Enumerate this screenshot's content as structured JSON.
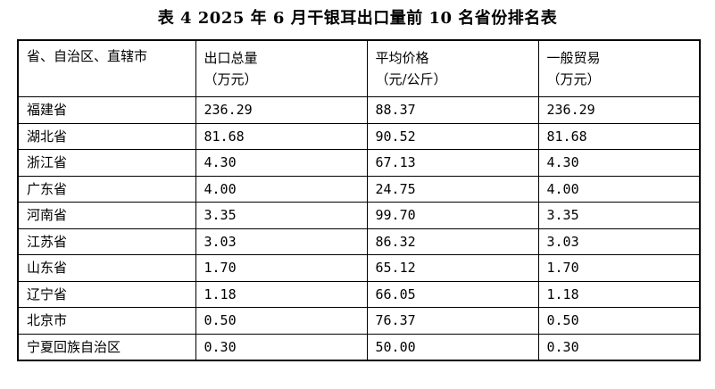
{
  "title": "表 4 2025 年 6 月干银耳出口量前 10 名省份排名表",
  "columns": [
    {
      "line1": "省、自治区、直辖市",
      "line2": ""
    },
    {
      "line1": "出口总量",
      "line2": "（万元）"
    },
    {
      "line1": "平均价格",
      "line2": "（元/公斤）"
    },
    {
      "line1": "一般贸易",
      "line2": "（万元）"
    }
  ],
  "rows": [
    {
      "province": "福建省",
      "total": "236.29",
      "price": "88.37",
      "general": "236.29"
    },
    {
      "province": "湖北省",
      "total": "81.68",
      "price": "90.52",
      "general": "81.68"
    },
    {
      "province": "浙江省",
      "total": "4.30",
      "price": "67.13",
      "general": "4.30"
    },
    {
      "province": "广东省",
      "total": "4.00",
      "price": "24.75",
      "general": "4.00"
    },
    {
      "province": "河南省",
      "total": "3.35",
      "price": "99.70",
      "general": "3.35"
    },
    {
      "province": "江苏省",
      "total": "3.03",
      "price": "86.32",
      "general": "3.03"
    },
    {
      "province": "山东省",
      "total": "1.70",
      "price": "65.12",
      "general": "1.70"
    },
    {
      "province": "辽宁省",
      "total": "1.18",
      "price": "66.05",
      "general": "1.18"
    },
    {
      "province": "北京市",
      "total": "0.50",
      "price": "76.37",
      "general": "0.50"
    },
    {
      "province": "宁夏回族自治区",
      "total": "0.30",
      "price": "50.00",
      "general": "0.30"
    }
  ]
}
